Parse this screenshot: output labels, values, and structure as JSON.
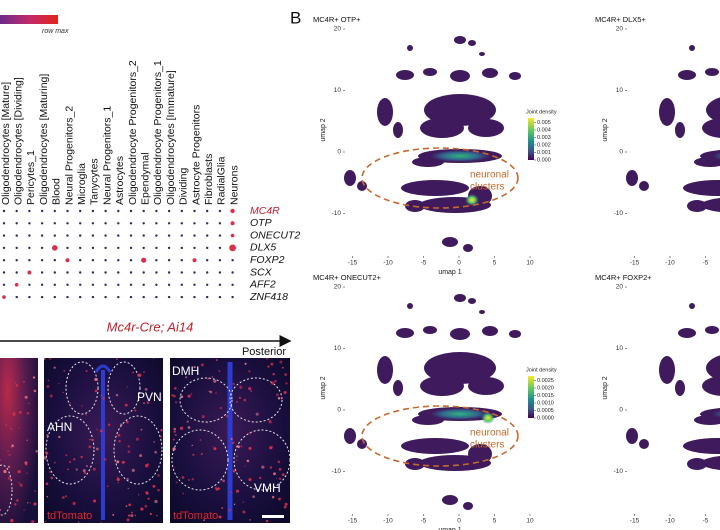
{
  "panel_a": {
    "colorbar_label": "row max",
    "cell_types": [
      "Oligodendrocytes [Mature]",
      "Oligodendrocytes [Dividing]",
      "Pericytes_1",
      "Oligodendrocytes [Maturing]",
      "Blood",
      "Neural Progenitors_2",
      "Microglia",
      "Tanycytes",
      "Neural Progenitors_1",
      "Astrocytes",
      "Oligodendrocyte Progenitors_2",
      "Ependymal",
      "Oligodendrocyte Progenitors_1",
      "Oligodendrocytes [Immature]",
      "Dividing",
      "Astrocyte Progenitors",
      "Fibroblasts",
      "RadialGlia",
      "Neurons"
    ],
    "genes": [
      "MC4R",
      "OTP",
      "ONECUT2",
      "DLX5",
      "FOXP2",
      "SCX",
      "AFF2",
      "ZNF418"
    ],
    "section_title": "Mc4r-Cre; Ai14",
    "direction_label": "Posterior",
    "images": [
      {
        "regions": []
      },
      {
        "regions": [
          "AHN",
          "PVN"
        ],
        "stain": "tdTomato"
      },
      {
        "regions": [
          "DMH",
          "VMH"
        ],
        "stain": "tdTomato"
      }
    ]
  },
  "panel_b": {
    "letter": "B",
    "x_label": "umap 1",
    "y_label": "umap 2",
    "x_ticks": [
      -15,
      -10,
      -5,
      0,
      5,
      10
    ],
    "y_ticks": [
      20,
      10,
      0,
      -10
    ],
    "panels": [
      {
        "title": "MC4R+ OTP+",
        "legend_title": "Joint density",
        "legend_lim": [
          0,
          0.0056
        ],
        "legend_ticks": [
          0.005,
          0.004,
          0.003,
          0.002,
          0.001,
          {
            "value": 0,
            "label": "0.000"
          }
        ],
        "annotation_lines": [
          "neuronal",
          "clusters"
        ]
      },
      {
        "title": "MC4R+ DLX5+"
      },
      {
        "title": "MC4R+ ONECUT2+",
        "legend_title": "Joint density",
        "legend_lim": [
          0,
          0.0028
        ],
        "legend_ticks": [
          0.0025,
          {
            "value": 0.002,
            "label": "0.0020"
          },
          0.0015,
          {
            "value": 0.001,
            "label": "0.0010"
          },
          0.0005,
          {
            "value": 0,
            "label": "0.0000"
          }
        ],
        "annotation_lines": [
          "neuronal",
          "clusters"
        ]
      },
      {
        "title": "MC4R+ FOXP2+"
      }
    ]
  }
}
